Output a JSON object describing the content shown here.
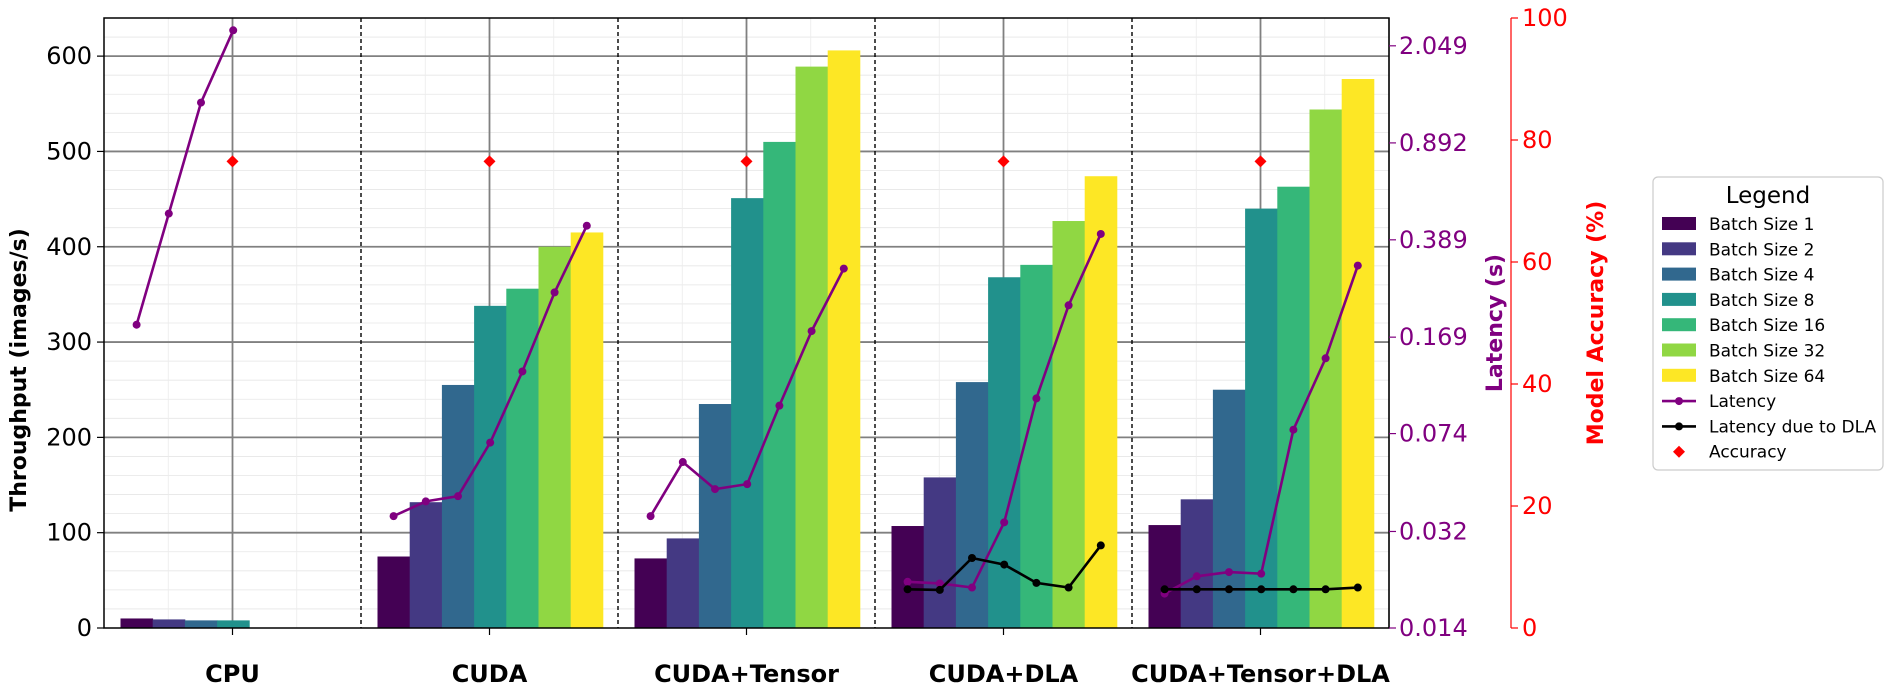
{
  "chart_data": {
    "type": "bar",
    "title": "",
    "categories": [
      "CPU",
      "CUDA",
      "CUDA+Tensor",
      "CUDA+DLA",
      "CUDA+Tensor+DLA"
    ],
    "ylabel": "Throughput (images/s)",
    "ylabel_latency": "Latency (s)",
    "ylabel_accuracy": "Model Accuracy (%)",
    "ylim": [
      0,
      640
    ],
    "yticks": [
      0,
      100,
      200,
      300,
      400,
      500,
      600
    ],
    "latency_scale": "log",
    "latency_range": [
      0.014,
      2.6
    ],
    "latency_ticks": [
      "0.014",
      "0.032",
      "0.074",
      "0.169",
      "0.389",
      "0.892",
      "2.049"
    ],
    "accuracy_range": [
      0,
      100
    ],
    "accuracy_ticks": [
      0,
      20,
      40,
      60,
      80,
      100
    ],
    "series": [
      {
        "name": "Batch Size 1",
        "color": "#440154",
        "values": [
          10,
          75,
          73,
          107,
          108
        ]
      },
      {
        "name": "Batch Size 2",
        "color": "#443983",
        "values": [
          9,
          132,
          94,
          158,
          135
        ]
      },
      {
        "name": "Batch Size 4",
        "color": "#31688e",
        "values": [
          8,
          255,
          235,
          258,
          250
        ]
      },
      {
        "name": "Batch Size 8",
        "color": "#21918c",
        "values": [
          8,
          338,
          451,
          368,
          440
        ]
      },
      {
        "name": "Batch Size 16",
        "color": "#35b779",
        "values": [
          0,
          356,
          510,
          381,
          463
        ]
      },
      {
        "name": "Batch Size 32",
        "color": "#90d743",
        "values": [
          0,
          400,
          589,
          427,
          544
        ]
      },
      {
        "name": "Batch Size 64",
        "color": "#fde725",
        "values": [
          0,
          415,
          606,
          474,
          576
        ]
      }
    ],
    "latency": {
      "name": "Latency",
      "color": "#800080",
      "values": [
        [
          0.188,
          0.487,
          1.26,
          2.34,
          null,
          null,
          null
        ],
        [
          0.0365,
          0.0414,
          0.0433,
          0.0685,
          0.126,
          0.248,
          0.439
        ],
        [
          0.0365,
          0.058,
          0.046,
          0.048,
          0.094,
          0.178,
          0.304
        ],
        [
          0.0208,
          0.0205,
          0.0198,
          0.0346,
          0.1,
          0.222,
          0.409
        ],
        [
          0.0188,
          0.0218,
          0.0226,
          0.0223,
          0.0765,
          0.141,
          0.312
        ]
      ]
    },
    "latency_dla": {
      "name": "Latency due to DLA",
      "color": "#000000",
      "values": [
        null,
        null,
        null,
        [
          0.0195,
          0.0194,
          0.0255,
          0.0241,
          0.0206,
          0.0198,
          0.0284
        ],
        [
          0.0195,
          0.0195,
          0.0195,
          0.0195,
          0.0195,
          0.0195,
          0.0198
        ]
      ]
    },
    "accuracy": {
      "name": "Accuracy",
      "color": "#ff0000",
      "values": [
        76.5,
        76.5,
        76.5,
        76.5,
        76.5
      ]
    },
    "legend": {
      "title": "Legend",
      "position": "right",
      "entries": [
        "Batch Size 1",
        "Batch Size 2",
        "Batch Size 4",
        "Batch Size 8",
        "Batch Size 16",
        "Batch Size 32",
        "Batch Size 64",
        "Latency",
        "Latency due to DLA",
        "Accuracy"
      ]
    },
    "grid": true
  }
}
